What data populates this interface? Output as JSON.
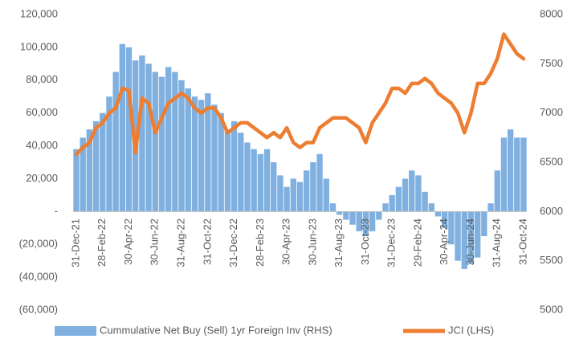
{
  "chart_data": {
    "type": "combo",
    "categories": [
      "31-Dec-21",
      null,
      null,
      null,
      "28-Feb-22",
      null,
      null,
      null,
      "30-Apr-22",
      null,
      null,
      null,
      "30-Jun-22",
      null,
      null,
      null,
      "31-Aug-22",
      null,
      null,
      null,
      "31-Oct-22",
      null,
      null,
      null,
      "31-Dec-22",
      null,
      null,
      null,
      "28-Feb-23",
      null,
      null,
      null,
      "30-Apr-23",
      null,
      null,
      null,
      "30-Jun-23",
      null,
      null,
      null,
      "31-Aug-23",
      null,
      null,
      null,
      "31-Oct-23",
      null,
      null,
      null,
      "31-Dec-23",
      null,
      null,
      null,
      "29-Feb-24",
      null,
      null,
      null,
      "30-Apr-24",
      null,
      null,
      null,
      "30-Jun-24",
      null,
      null,
      null,
      "31-Aug-24",
      null,
      null,
      null,
      "31-Oct-24"
    ],
    "series": [
      {
        "name": "Cummulative Net Buy (Sell) 1yr Foreign Inv (RHS)",
        "type": "bar",
        "color": "#7fb0e0",
        "values": [
          38000,
          45000,
          50000,
          55000,
          60000,
          70000,
          85000,
          102000,
          100000,
          92000,
          95000,
          90000,
          85000,
          82000,
          88000,
          85000,
          80000,
          75000,
          70000,
          68000,
          72000,
          65000,
          60000,
          50000,
          55000,
          48000,
          42000,
          38000,
          35000,
          38000,
          30000,
          22000,
          15000,
          20000,
          18000,
          25000,
          30000,
          35000,
          20000,
          5000,
          -2000,
          -5000,
          -8000,
          -12000,
          -15000,
          -12000,
          -5000,
          5000,
          10000,
          15000,
          20000,
          25000,
          22000,
          12000,
          5000,
          -3000,
          -10000,
          -20000,
          -30000,
          -35000,
          -32000,
          -28000,
          -15000,
          5000,
          25000,
          45000,
          50000,
          45000,
          45000
        ]
      },
      {
        "name": "JCI (LHS)",
        "type": "line",
        "axis": "y2",
        "color": "#ed7d31",
        "values": [
          6580,
          6650,
          6700,
          6850,
          6900,
          7000,
          7050,
          7250,
          7230,
          6600,
          7150,
          7100,
          6800,
          6950,
          7100,
          7150,
          7200,
          7150,
          7050,
          7000,
          7050,
          7050,
          6950,
          6800,
          6850,
          6900,
          6900,
          6850,
          6800,
          6750,
          6800,
          6750,
          6850,
          6700,
          6650,
          6700,
          6700,
          6850,
          6900,
          6950,
          6950,
          6950,
          6900,
          6850,
          6700,
          6900,
          7000,
          7100,
          7250,
          7250,
          7200,
          7300,
          7300,
          7350,
          7300,
          7200,
          7150,
          7100,
          7000,
          6800,
          7000,
          7300,
          7300,
          7400,
          7550,
          7800,
          7700,
          7600,
          7550
        ]
      }
    ],
    "ylim": [
      -60000,
      120000
    ],
    "yticks": [
      {
        "value": -60000,
        "label": "(60,000)"
      },
      {
        "value": -40000,
        "label": "(40,000)"
      },
      {
        "value": -20000,
        "label": "(20,000)"
      },
      {
        "value": 0,
        "label": "-"
      },
      {
        "value": 20000,
        "label": "20,000"
      },
      {
        "value": 40000,
        "label": "40,000"
      },
      {
        "value": 60000,
        "label": "60,000"
      },
      {
        "value": 80000,
        "label": "80,000"
      },
      {
        "value": 100000,
        "label": "100,000"
      },
      {
        "value": 120000,
        "label": "120,000"
      }
    ],
    "y2lim": [
      5000,
      8000
    ],
    "y2ticks": [
      5000,
      5500,
      6000,
      6500,
      7000,
      7500,
      8000
    ],
    "grid": false
  }
}
